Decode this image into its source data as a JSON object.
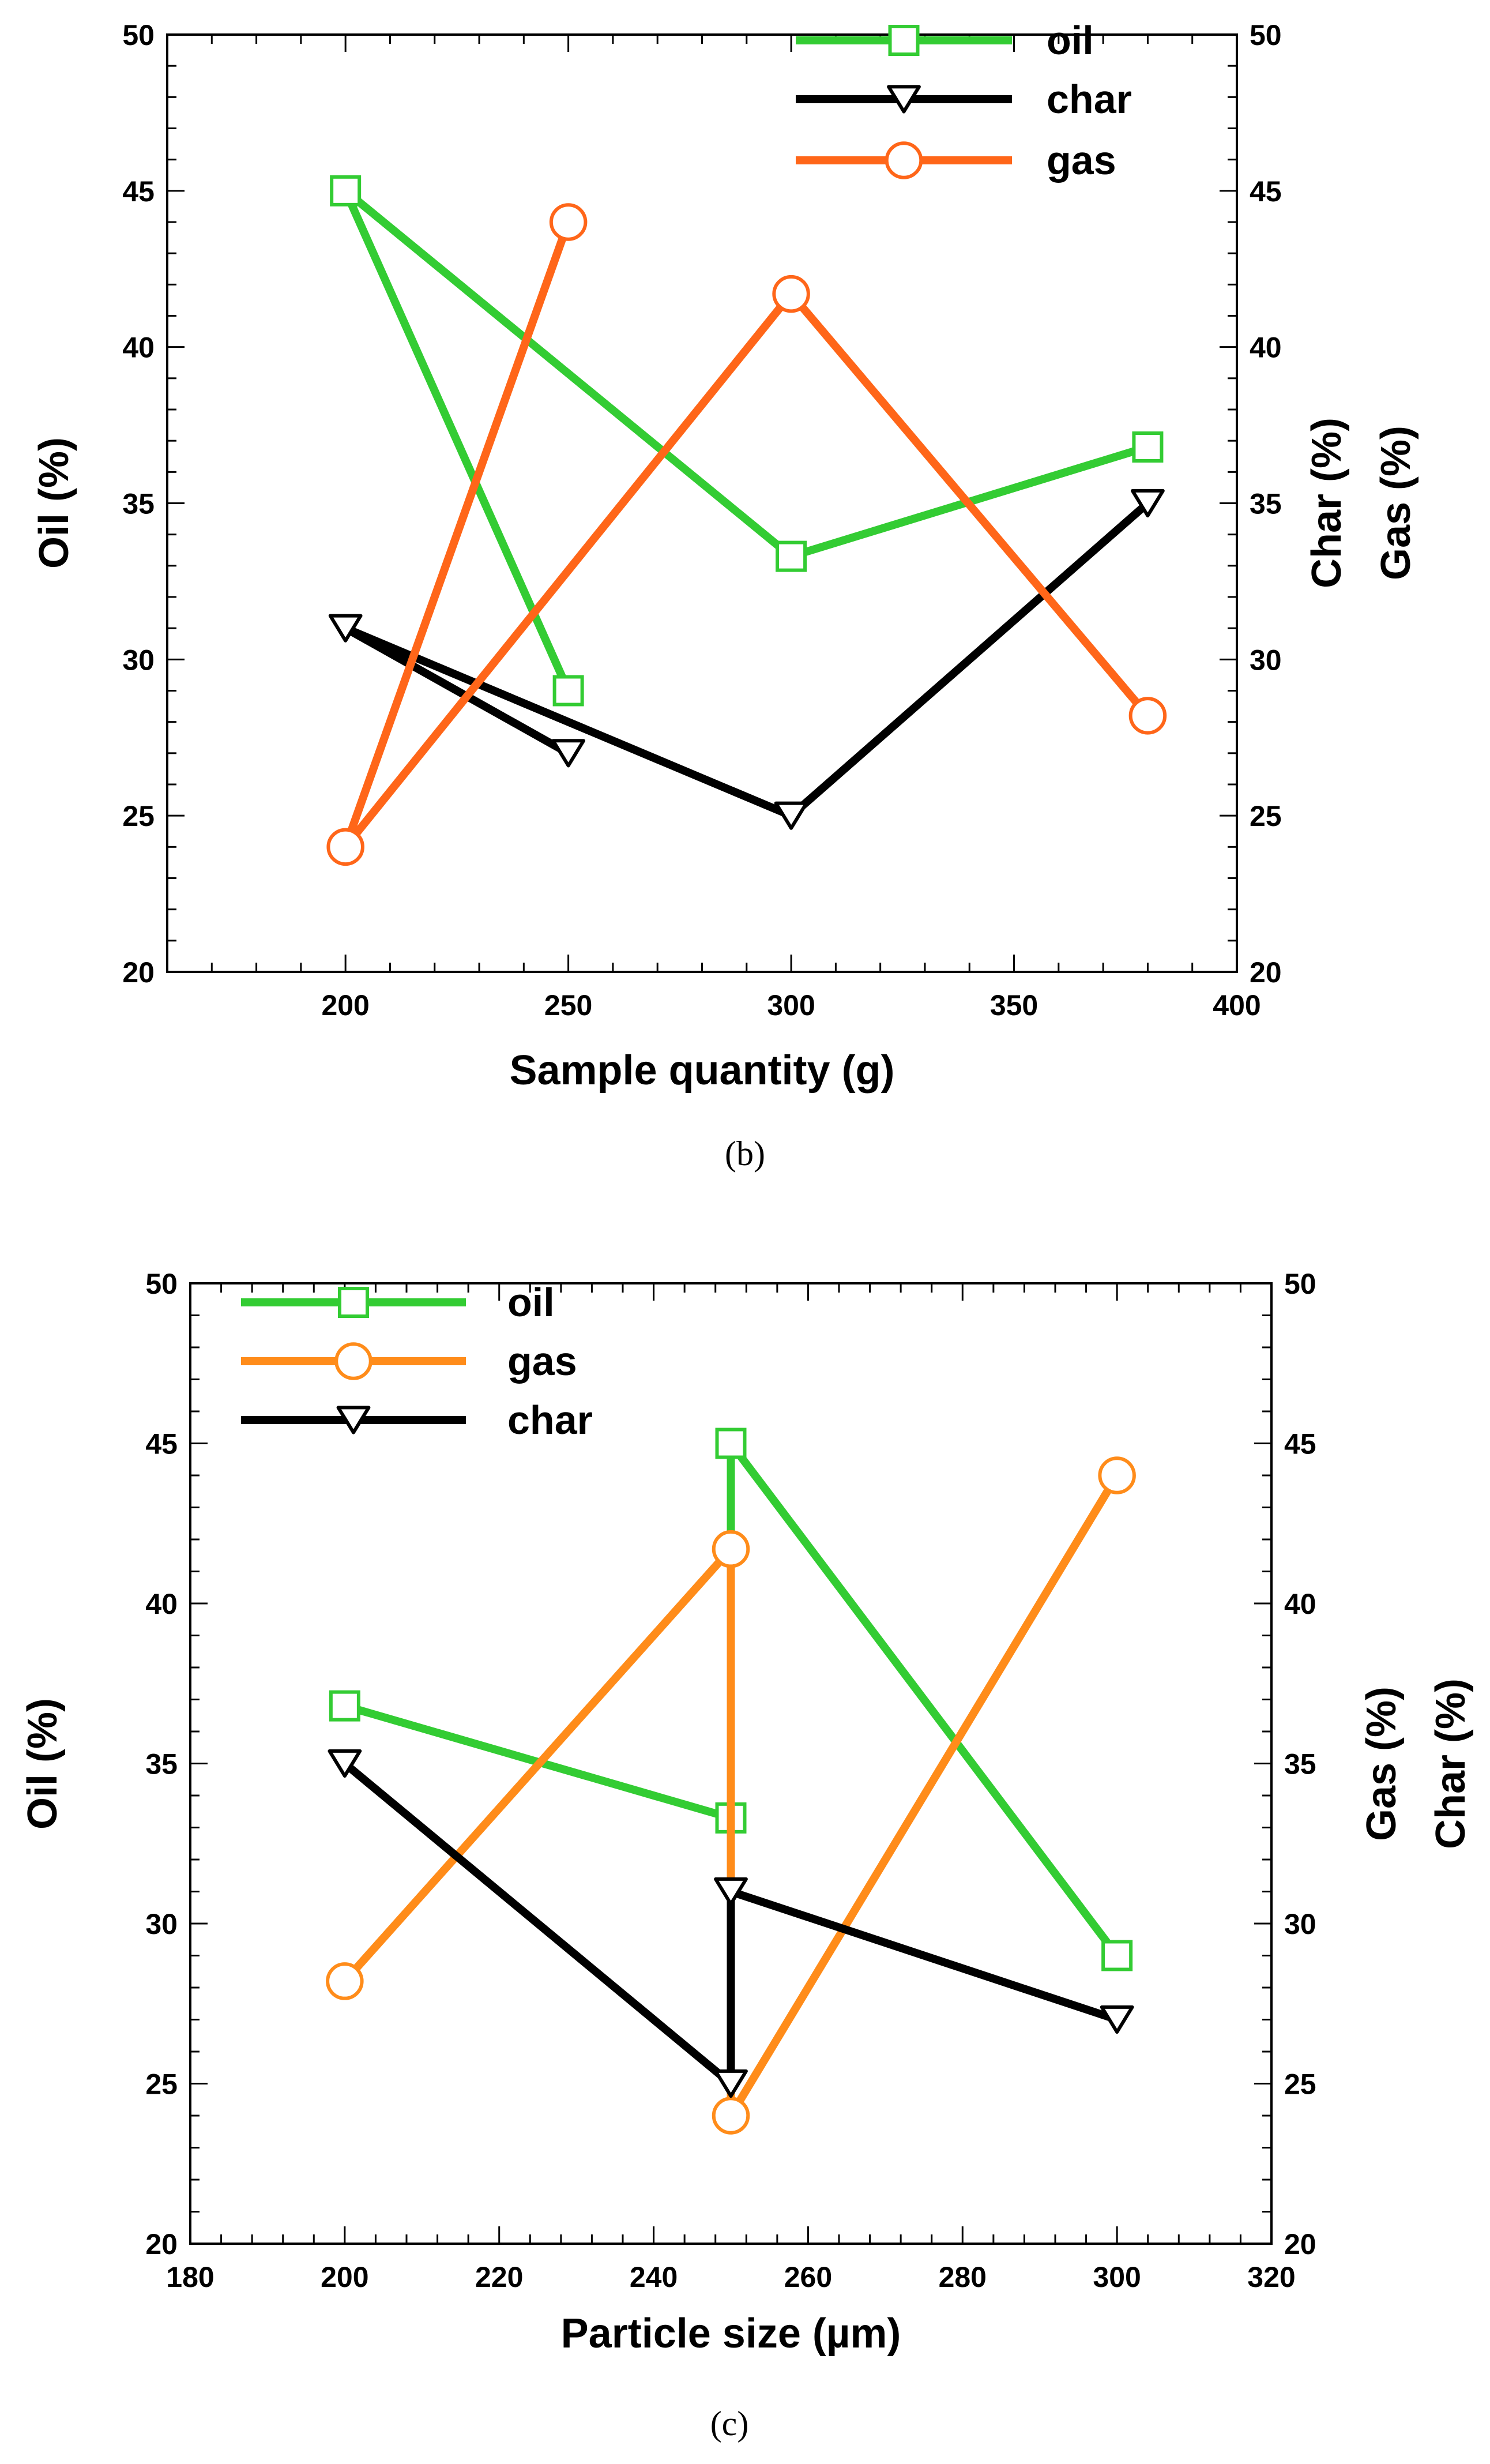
{
  "colors": {
    "oil_b": "#33cc33",
    "char_b": "#000000",
    "gas_b": "#ff6619",
    "oil_c": "#33cc33",
    "gas_c": "#ff8c1a",
    "char_c": "#000000"
  },
  "chart_data": [
    {
      "type": "line",
      "caption": "(b)",
      "xlabel": "Sample quantity (g)",
      "ylabel_left": "Oil (%)",
      "ylabel_right": [
        "Char (%)",
        "Gas (%)"
      ],
      "xlim": [
        160,
        400
      ],
      "ylim": [
        20,
        50
      ],
      "x_ticks": [
        200,
        250,
        300,
        350,
        400
      ],
      "y_ticks": [
        20,
        25,
        30,
        35,
        40,
        45,
        50
      ],
      "legend_position": "top-right",
      "series": [
        {
          "name": "oil",
          "marker": "square",
          "color_key": "oil_b",
          "x": [
            250,
            200,
            300,
            380
          ],
          "y": [
            29,
            45,
            33.3,
            36.8
          ]
        },
        {
          "name": "char",
          "marker": "triangle-down",
          "color_key": "char_b",
          "x": [
            250,
            200,
            300,
            380
          ],
          "y": [
            27,
            31,
            25,
            35
          ]
        },
        {
          "name": "gas",
          "marker": "circle",
          "color_key": "gas_b",
          "x": [
            250,
            200,
            300,
            380
          ],
          "y": [
            44,
            24,
            41.7,
            28.2
          ]
        }
      ]
    },
    {
      "type": "line",
      "caption": "(c)",
      "xlabel": "Particle size (µm)",
      "ylabel_left": "Oil (%)",
      "ylabel_right": [
        "Gas (%)",
        "Char (%)"
      ],
      "xlim": [
        180,
        320
      ],
      "ylim": [
        20,
        50
      ],
      "x_ticks": [
        180,
        200,
        220,
        240,
        260,
        280,
        300,
        320
      ],
      "y_ticks": [
        20,
        25,
        30,
        35,
        40,
        45,
        50
      ],
      "legend_position": "top-left",
      "series": [
        {
          "name": "oil",
          "marker": "square",
          "color_key": "oil_c",
          "x": [
            200,
            250,
            250,
            300
          ],
          "y": [
            36.8,
            33.3,
            45,
            29
          ]
        },
        {
          "name": "gas",
          "marker": "circle",
          "color_key": "gas_c",
          "x": [
            200,
            250,
            250,
            300
          ],
          "y": [
            28.2,
            41.7,
            24,
            44
          ]
        },
        {
          "name": "char",
          "marker": "triangle-down",
          "color_key": "char_c",
          "x": [
            200,
            250,
            250,
            300
          ],
          "y": [
            35,
            25,
            31,
            27
          ]
        }
      ]
    }
  ]
}
